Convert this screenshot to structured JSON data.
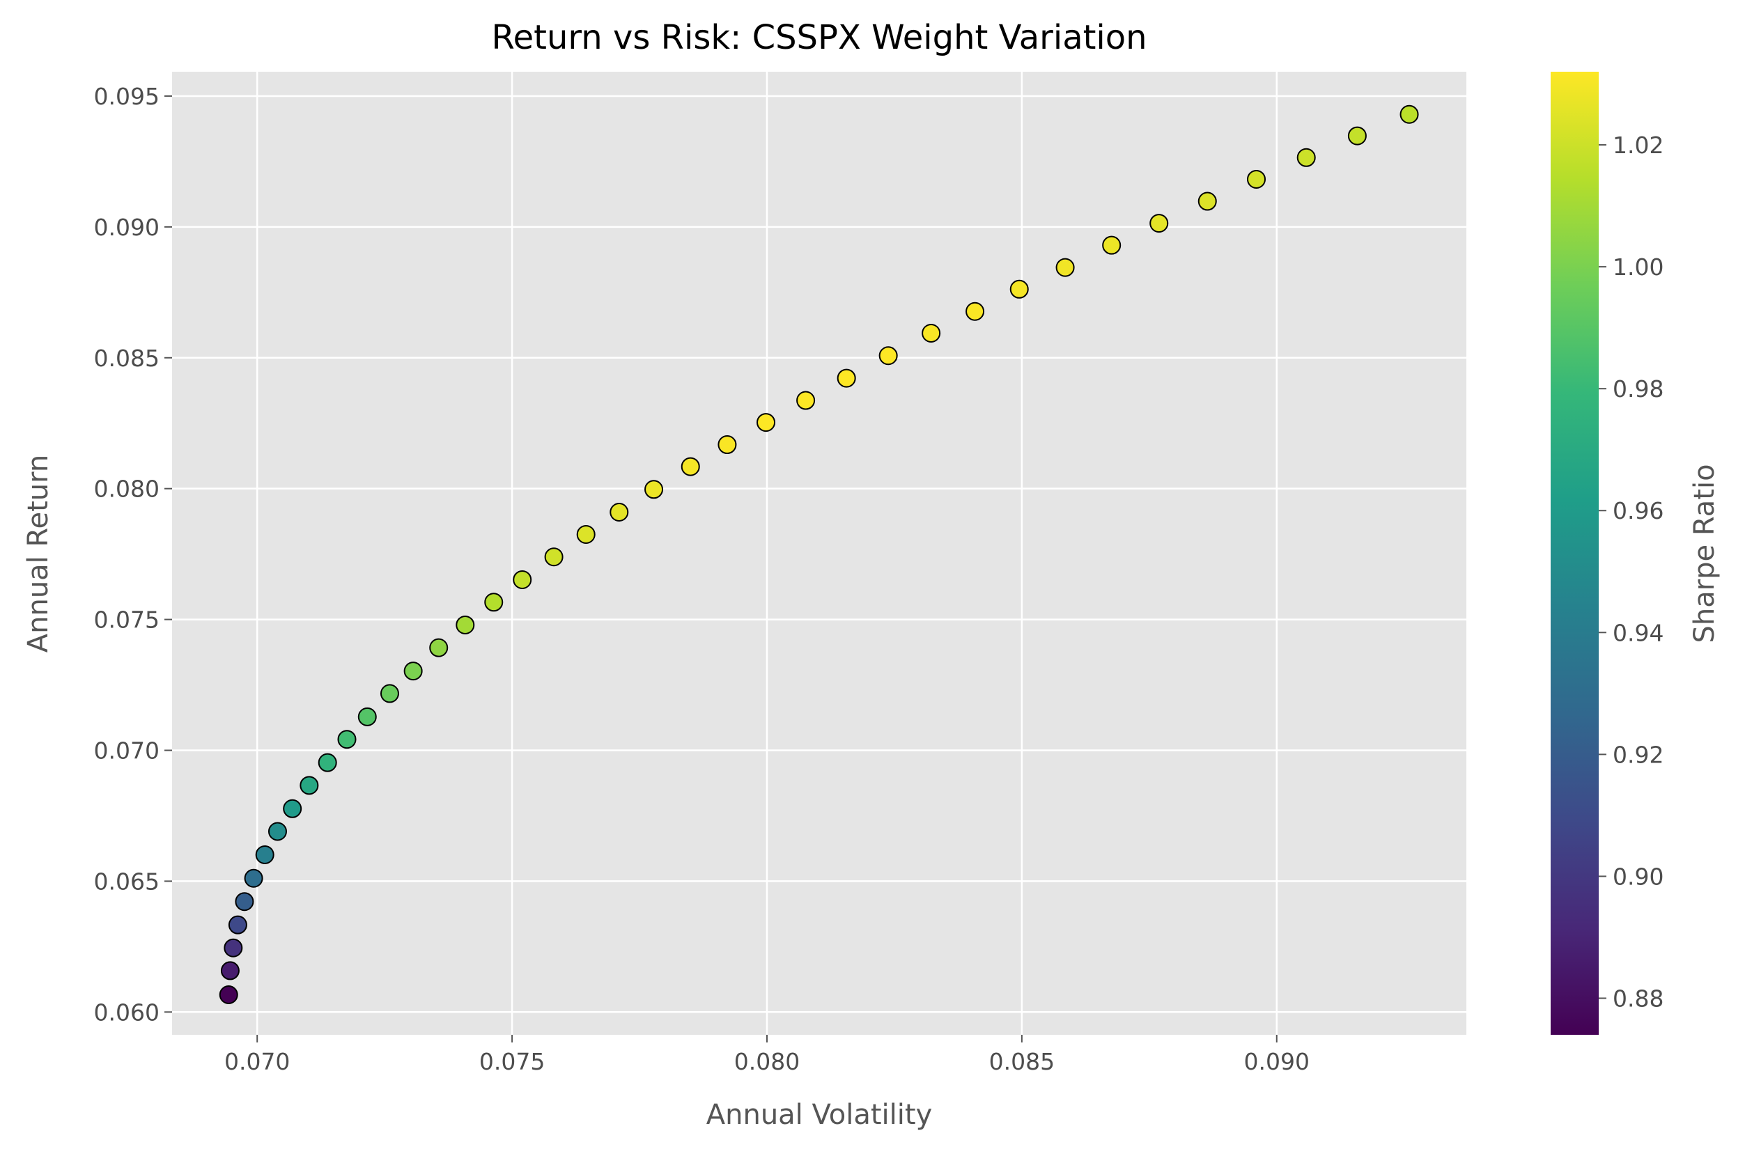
{
  "chart_data": {
    "type": "scatter",
    "title": "Return vs Risk: CSSPX Weight Variation",
    "xlabel": "Annual Volatility",
    "ylabel": "Annual Return",
    "xlim": [
      0.06833,
      0.09372
    ],
    "ylim": [
      0.05913,
      0.09593
    ],
    "xticks": [
      0.07,
      0.075,
      0.08,
      0.085,
      0.09
    ],
    "xtick_labels": [
      "0.070",
      "0.075",
      "0.080",
      "0.085",
      "0.090"
    ],
    "yticks": [
      0.06,
      0.065,
      0.07,
      0.075,
      0.08,
      0.085,
      0.09,
      0.095
    ],
    "ytick_labels": [
      "0.060",
      "0.065",
      "0.070",
      "0.075",
      "0.080",
      "0.085",
      "0.090",
      "0.095"
    ],
    "grid": true,
    "colorbar": {
      "label": "Sharpe Ratio",
      "colormap": "viridis",
      "range": [
        0.874,
        1.032
      ],
      "ticks": [
        0.88,
        0.9,
        0.92,
        0.94,
        0.96,
        0.98,
        1.0,
        1.02
      ],
      "tick_labels": [
        "0.88",
        "0.90",
        "0.92",
        "0.94",
        "0.96",
        "0.98",
        "1.00",
        "1.02"
      ]
    },
    "colors": {
      "plot_background": "#e5e5e5",
      "grid": "#ffffff",
      "marker_edge": "#000000",
      "viridis": [
        "#440154",
        "#482878",
        "#3e4989",
        "#31688e",
        "#26828e",
        "#1f9e89",
        "#35b779",
        "#6ece58",
        "#b5de2b",
        "#fde725"
      ]
    },
    "points": [
      {
        "x": 0.06944,
        "y": 0.06066,
        "sharpe": 0.874
      },
      {
        "x": 0.06947,
        "y": 0.06158,
        "sharpe": 0.886
      },
      {
        "x": 0.06953,
        "y": 0.06245,
        "sharpe": 0.897
      },
      {
        "x": 0.06962,
        "y": 0.06333,
        "sharpe": 0.909
      },
      {
        "x": 0.06975,
        "y": 0.06422,
        "sharpe": 0.921
      },
      {
        "x": 0.06993,
        "y": 0.06511,
        "sharpe": 0.931
      },
      {
        "x": 0.07015,
        "y": 0.06601,
        "sharpe": 0.942
      },
      {
        "x": 0.0704,
        "y": 0.0669,
        "sharpe": 0.951
      },
      {
        "x": 0.07069,
        "y": 0.06777,
        "sharpe": 0.96
      },
      {
        "x": 0.07102,
        "y": 0.06866,
        "sharpe": 0.968
      },
      {
        "x": 0.07138,
        "y": 0.06953,
        "sharpe": 0.976
      },
      {
        "x": 0.07176,
        "y": 0.07042,
        "sharpe": 0.983
      },
      {
        "x": 0.07216,
        "y": 0.07128,
        "sharpe": 0.989
      },
      {
        "x": 0.0726,
        "y": 0.07217,
        "sharpe": 0.995
      },
      {
        "x": 0.07306,
        "y": 0.07303,
        "sharpe": 1.0
      },
      {
        "x": 0.07356,
        "y": 0.07392,
        "sharpe": 1.005
      },
      {
        "x": 0.07408,
        "y": 0.07479,
        "sharpe": 1.01
      },
      {
        "x": 0.07464,
        "y": 0.07566,
        "sharpe": 1.014
      },
      {
        "x": 0.0752,
        "y": 0.07652,
        "sharpe": 1.018
      },
      {
        "x": 0.07582,
        "y": 0.07739,
        "sharpe": 1.021
      },
      {
        "x": 0.07645,
        "y": 0.07825,
        "sharpe": 1.024
      },
      {
        "x": 0.0771,
        "y": 0.0791,
        "sharpe": 1.026
      },
      {
        "x": 0.07778,
        "y": 0.07997,
        "sharpe": 1.028
      },
      {
        "x": 0.0785,
        "y": 0.08084,
        "sharpe": 1.03
      },
      {
        "x": 0.07922,
        "y": 0.08168,
        "sharpe": 1.031
      },
      {
        "x": 0.07998,
        "y": 0.08253,
        "sharpe": 1.032
      },
      {
        "x": 0.08076,
        "y": 0.08337,
        "sharpe": 1.032
      },
      {
        "x": 0.08156,
        "y": 0.08422,
        "sharpe": 1.032
      },
      {
        "x": 0.08238,
        "y": 0.08508,
        "sharpe": 1.032
      },
      {
        "x": 0.08322,
        "y": 0.08594,
        "sharpe": 1.031
      },
      {
        "x": 0.08408,
        "y": 0.08677,
        "sharpe": 1.031
      },
      {
        "x": 0.08495,
        "y": 0.08762,
        "sharpe": 1.03
      },
      {
        "x": 0.08585,
        "y": 0.08845,
        "sharpe": 1.029
      },
      {
        "x": 0.08676,
        "y": 0.0893,
        "sharpe": 1.028
      },
      {
        "x": 0.08769,
        "y": 0.09014,
        "sharpe": 1.026
      },
      {
        "x": 0.08864,
        "y": 0.09098,
        "sharpe": 1.024
      },
      {
        "x": 0.0896,
        "y": 0.09182,
        "sharpe": 1.022
      },
      {
        "x": 0.09058,
        "y": 0.09265,
        "sharpe": 1.02
      },
      {
        "x": 0.09158,
        "y": 0.09348,
        "sharpe": 1.018
      },
      {
        "x": 0.0926,
        "y": 0.0943,
        "sharpe": 1.016
      }
    ]
  }
}
